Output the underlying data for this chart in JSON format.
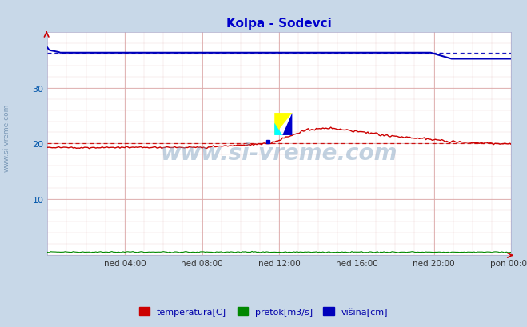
{
  "title": "Kolpa - Sodevci",
  "title_color": "#0000cc",
  "bg_color": "#c8d8e8",
  "plot_bg_color": "#ffffff",
  "fig_size": [
    6.59,
    4.1
  ],
  "dpi": 100,
  "ylim": [
    0,
    40
  ],
  "yticks": [
    10,
    20,
    30
  ],
  "xlim": [
    0,
    288
  ],
  "xtick_positions": [
    48,
    96,
    144,
    192,
    240,
    288
  ],
  "xtick_labels": [
    "ned 04:00",
    "ned 08:00",
    "ned 12:00",
    "ned 16:00",
    "ned 20:00",
    "pon 00:00"
  ],
  "grid_color": "#ddaaaa",
  "watermark": "www.si-vreme.com",
  "watermark_color": "#7799bb",
  "watermark_alpha": 0.45,
  "temp_color": "#cc0000",
  "pretok_color": "#008800",
  "visina_color": "#0000bb",
  "temp_avg": 20.0,
  "visina_avg": 36.2,
  "legend_items": [
    {
      "label": "temperatura[C]",
      "color": "#cc0000"
    },
    {
      "label": "pretok[m3/s]",
      "color": "#008800"
    },
    {
      "label": "višina[cm]",
      "color": "#0000bb"
    }
  ],
  "axis_color": "#0000cc",
  "tick_color": "#0055aa",
  "left_label": "www.si-vreme.com"
}
